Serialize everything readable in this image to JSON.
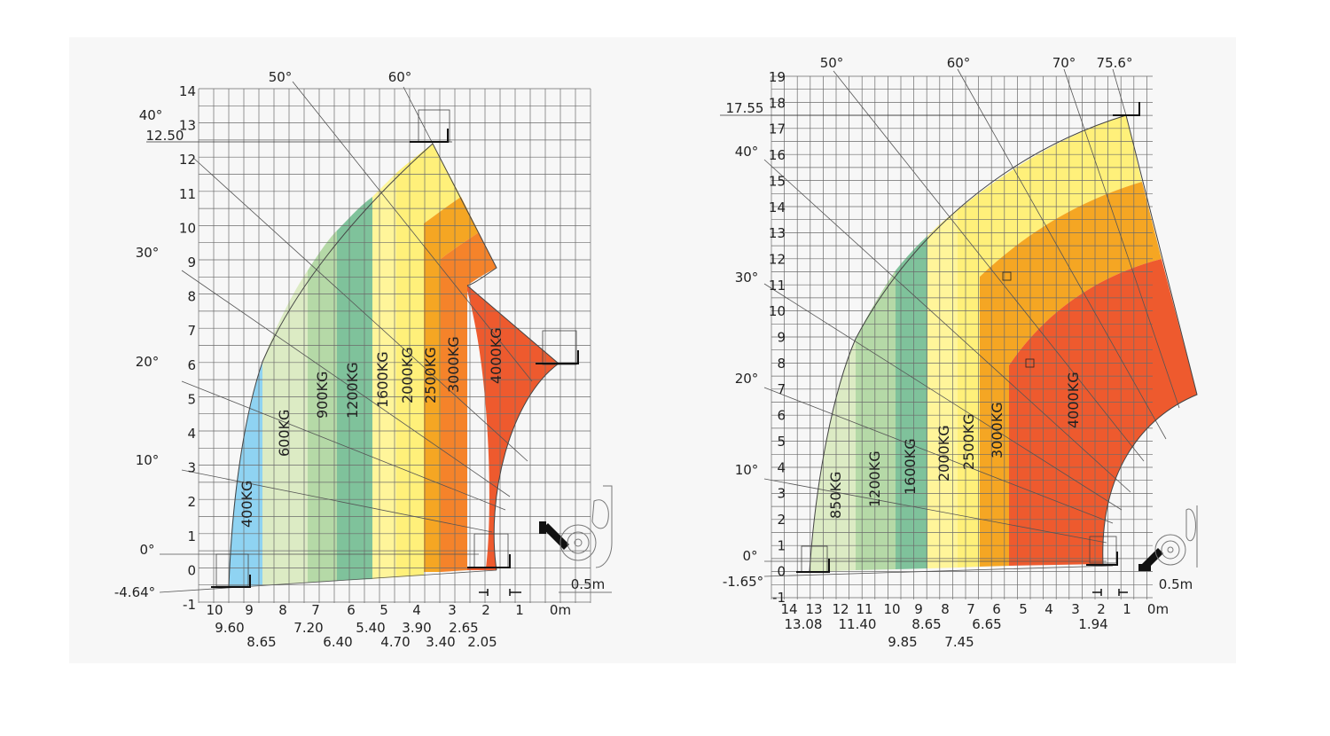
{
  "colors": {
    "blue": "#8fd3f2",
    "pale_green": "#dcebc4",
    "light_green": "#b5d9a7",
    "green": "#7fc29b",
    "light_yellow": "#fff59a",
    "yellow": "#fff07a",
    "light_orange": "#fdd466",
    "orange": "#f5a623",
    "dark_orange": "#f5832a",
    "red": "#ee5a2e",
    "grid": "#6b6b6b",
    "panel_background": "#f7f7f7"
  },
  "chart_data": [
    {
      "type": "load-chart",
      "y_axis": {
        "ticks": [
          "14",
          "13",
          "12",
          "11",
          "10",
          "9",
          "8",
          "7",
          "6",
          "5",
          "4",
          "3",
          "2",
          "1",
          "0",
          "-1"
        ]
      },
      "x_axis": {
        "ticks": [
          "10",
          "9",
          "8",
          "7",
          "6",
          "5",
          "4",
          "3",
          "2",
          "1",
          "0m"
        ]
      },
      "x_secondary_values": [
        "9.60",
        "8.65",
        "7.20",
        "6.40",
        "5.40",
        "4.70",
        "3.90",
        "3.40",
        "2.65",
        "2.05"
      ],
      "angle_labels": [
        "60°",
        "50°",
        "40°",
        "30°",
        "20°",
        "10°",
        "0°",
        "-4.64°"
      ],
      "max_height_label": "12.50",
      "scale_label": "0.5m",
      "load_zones": [
        {
          "label": "400KG",
          "color": "blue"
        },
        {
          "label": "600KG",
          "color": "pale_green"
        },
        {
          "label": "900KG",
          "color": "light_green"
        },
        {
          "label": "1200KG",
          "color": "green"
        },
        {
          "label": "1600KG",
          "color": "light_yellow"
        },
        {
          "label": "2000KG",
          "color": "yellow"
        },
        {
          "label": "2500KG",
          "color": "orange"
        },
        {
          "label": "3000KG",
          "color": "dark_orange"
        },
        {
          "label": "4000KG",
          "color": "red"
        }
      ]
    },
    {
      "type": "load-chart",
      "y_axis": {
        "ticks": [
          "19",
          "18",
          "17",
          "16",
          "15",
          "14",
          "13",
          "12",
          "11",
          "10",
          "9",
          "8",
          "7",
          "6",
          "5",
          "4",
          "3",
          "2",
          "1",
          "0",
          "-1"
        ]
      },
      "x_axis": {
        "ticks": [
          "14",
          "13",
          "12",
          "11",
          "10",
          "9",
          "8",
          "7",
          "6",
          "5",
          "4",
          "3",
          "2",
          "1",
          "0m"
        ]
      },
      "x_secondary_values": [
        "13.08",
        "11.40",
        "9.85",
        "8.65",
        "7.45",
        "6.65",
        "1.94"
      ],
      "angle_labels": [
        "75.6°",
        "70°",
        "60°",
        "50°",
        "40°",
        "30°",
        "20°",
        "10°",
        "0°",
        "-1.65°"
      ],
      "max_height_label": "17.55",
      "scale_label": "0.5m",
      "load_zones": [
        {
          "label": "850KG",
          "color": "pale_green"
        },
        {
          "label": "1200KG",
          "color": "light_green"
        },
        {
          "label": "1600KG",
          "color": "green"
        },
        {
          "label": "2000KG",
          "color": "light_yellow"
        },
        {
          "label": "2500KG",
          "color": "yellow"
        },
        {
          "label": "3000KG",
          "color": "orange"
        },
        {
          "label": "4000KG",
          "color": "red"
        }
      ]
    }
  ]
}
